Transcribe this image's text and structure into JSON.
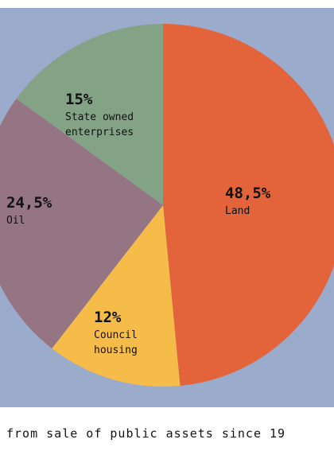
{
  "chart_data": {
    "type": "pie",
    "caption": "from sale of public assets since 19",
    "slices": [
      {
        "label_lines": [
          "Land"
        ],
        "value": 48.5,
        "value_text": "48,5%",
        "color": "#e3643a"
      },
      {
        "label_lines": [
          "Council",
          "housing"
        ],
        "value": 12,
        "value_text": "12%",
        "color": "#f5bc4a"
      },
      {
        "label_lines": [
          "Oil"
        ],
        "value": 24.5,
        "value_text": "24,5%",
        "color": "#957484"
      },
      {
        "label_lines": [
          "State owned",
          "enterprises"
        ],
        "value": 15,
        "value_text": "15%",
        "color": "#84a286"
      }
    ],
    "background_color": "#9aabcb"
  }
}
